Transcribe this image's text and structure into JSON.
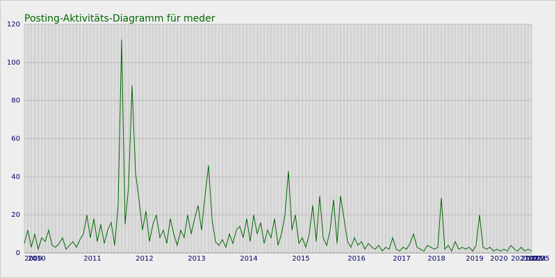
{
  "chart_data": {
    "type": "line",
    "title": "Posting-Aktivitäts-Diagramm für meder",
    "categories": [
      "2009",
      "2010",
      null,
      null,
      null,
      null,
      null,
      null,
      null,
      null,
      null,
      null,
      null,
      null,
      null,
      null,
      null,
      "2011",
      null,
      null,
      null,
      null,
      null,
      null,
      null,
      null,
      null,
      null,
      null,
      null,
      null,
      null,
      "2012",
      null,
      null,
      null,
      null,
      null,
      null,
      null,
      null,
      null,
      null,
      null,
      null,
      null,
      null,
      "2013",
      null,
      null,
      null,
      null,
      null,
      null,
      null,
      null,
      null,
      null,
      null,
      null,
      null,
      null,
      "2014",
      null,
      null,
      null,
      null,
      null,
      null,
      null,
      null,
      null,
      null,
      null,
      null,
      null,
      null,
      "2015",
      null,
      null,
      null,
      null,
      null,
      null,
      null,
      null,
      null,
      null,
      null,
      null,
      null,
      null,
      null,
      "2016",
      null,
      null,
      null,
      null,
      null,
      null,
      null,
      null,
      null,
      null,
      null,
      null,
      "2017",
      null,
      null,
      null,
      null,
      null,
      null,
      null,
      null,
      null,
      "2018",
      null,
      null,
      null,
      null,
      null,
      null,
      null,
      null,
      null,
      null,
      "2019",
      null,
      null,
      null,
      null,
      null,
      null,
      "2020",
      null,
      null,
      null,
      null,
      null,
      "2021",
      null,
      null,
      "2022",
      "2023",
      "2024",
      "2025"
    ],
    "series": [
      {
        "color": "#006600",
        "values": [
          5,
          12,
          3,
          10,
          2,
          8,
          6,
          12,
          4,
          3,
          5,
          8,
          2,
          4,
          6,
          3,
          7,
          10,
          20,
          8,
          18,
          6,
          15,
          5,
          12,
          16,
          4,
          25,
          112,
          15,
          35,
          88,
          42,
          28,
          12,
          22,
          6,
          15,
          20,
          8,
          12,
          5,
          18,
          10,
          4,
          12,
          8,
          20,
          10,
          18,
          25,
          12,
          30,
          46,
          18,
          6,
          4,
          7,
          3,
          10,
          5,
          12,
          14,
          8,
          18,
          6,
          20,
          10,
          16,
          5,
          12,
          8,
          18,
          4,
          10,
          20,
          43,
          12,
          20,
          5,
          8,
          3,
          10,
          25,
          6,
          30,
          8,
          4,
          12,
          28,
          5,
          30,
          18,
          6,
          3,
          8,
          4,
          6,
          2,
          5,
          3,
          2,
          4,
          1,
          3,
          2,
          8,
          2,
          1,
          3,
          2,
          5,
          10,
          3,
          2,
          1,
          4,
          3,
          2,
          3,
          29,
          2,
          4,
          1,
          6,
          2,
          3,
          2,
          3,
          1,
          4,
          20,
          3,
          2,
          3,
          1,
          2,
          1,
          2,
          1,
          4,
          2,
          1,
          3,
          1,
          2,
          1
        ]
      }
    ],
    "ylim": [
      0,
      120
    ],
    "yticks": [
      0,
      20,
      40,
      60,
      80,
      100,
      120
    ],
    "grid": true
  }
}
